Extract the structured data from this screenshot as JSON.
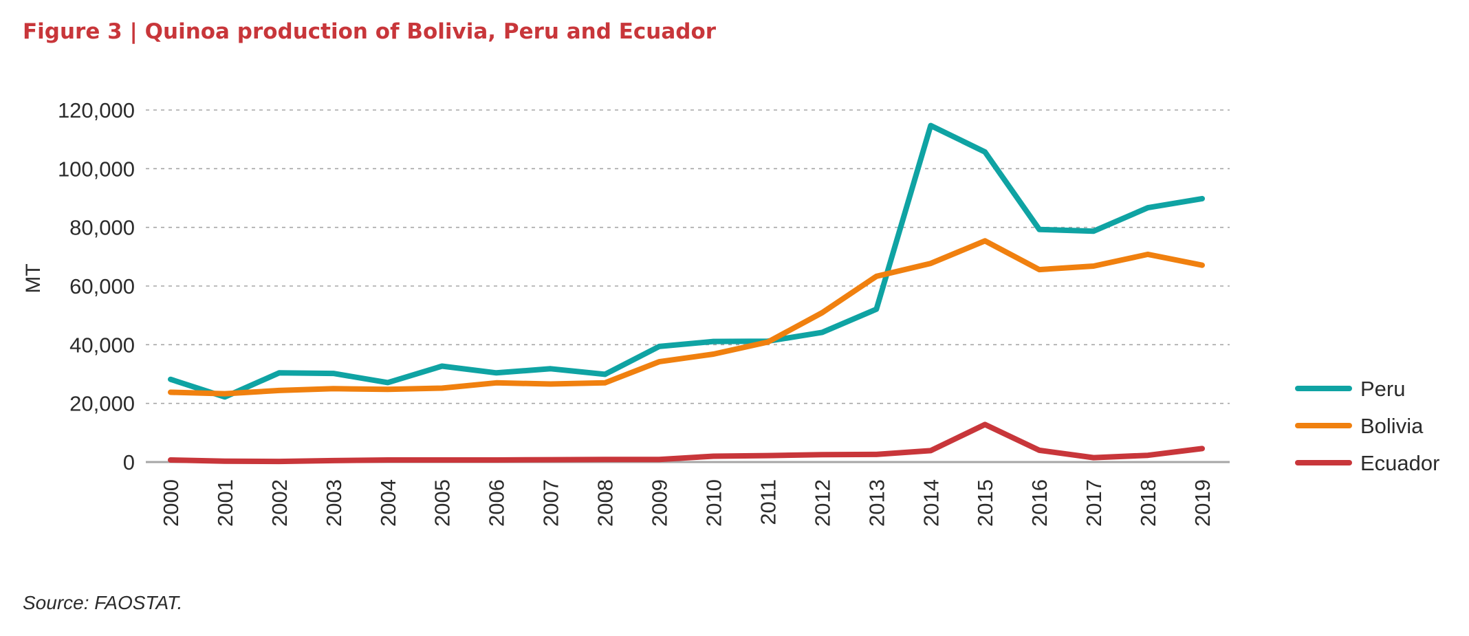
{
  "figure": {
    "title": "Figure 3 | Quinoa production of Bolivia, Peru and Ecuador",
    "source": "Source: FAOSTAT."
  },
  "colors": {
    "title": "#c8363a",
    "grid": "#a6a6a6",
    "axis": "#a6a6a6"
  },
  "chart_data": {
    "type": "line",
    "title": "",
    "xlabel": "",
    "ylabel": "MT",
    "x": [
      "2000",
      "2001",
      "2002",
      "2003",
      "2004",
      "2005",
      "2006",
      "2007",
      "2008",
      "2009",
      "2010",
      "2011",
      "2012",
      "2013",
      "2014",
      "2015",
      "2016",
      "2017",
      "2018",
      "2019"
    ],
    "ylim": [
      0,
      120000
    ],
    "yticks": [
      0,
      20000,
      40000,
      60000,
      80000,
      100000,
      120000
    ],
    "ytick_labels": [
      "0",
      "20,000",
      "40,000",
      "60,000",
      "80,000",
      "100,000",
      "120,000"
    ],
    "grid": "horizontal dashed",
    "legend_position": "right",
    "series": [
      {
        "name": "Peru",
        "color": "#0fa3a3",
        "values": [
          28200,
          22200,
          30400,
          30200,
          27100,
          32700,
          30400,
          31800,
          29900,
          39400,
          41100,
          41200,
          44200,
          52100,
          114700,
          105700,
          79300,
          78700,
          86700,
          89800
        ]
      },
      {
        "name": "Bolivia",
        "color": "#f0800f",
        "values": [
          23800,
          23300,
          24400,
          25000,
          24800,
          25200,
          27000,
          26600,
          27000,
          34200,
          36800,
          40900,
          50900,
          63300,
          67700,
          75400,
          65600,
          66800,
          70800,
          67100
        ]
      },
      {
        "name": "Ecuador",
        "color": "#c8363a",
        "values": [
          700,
          300,
          200,
          500,
          700,
          700,
          700,
          800,
          900,
          900,
          2000,
          2200,
          2500,
          2600,
          3900,
          12800,
          4000,
          1500,
          2300,
          4600
        ]
      }
    ]
  }
}
